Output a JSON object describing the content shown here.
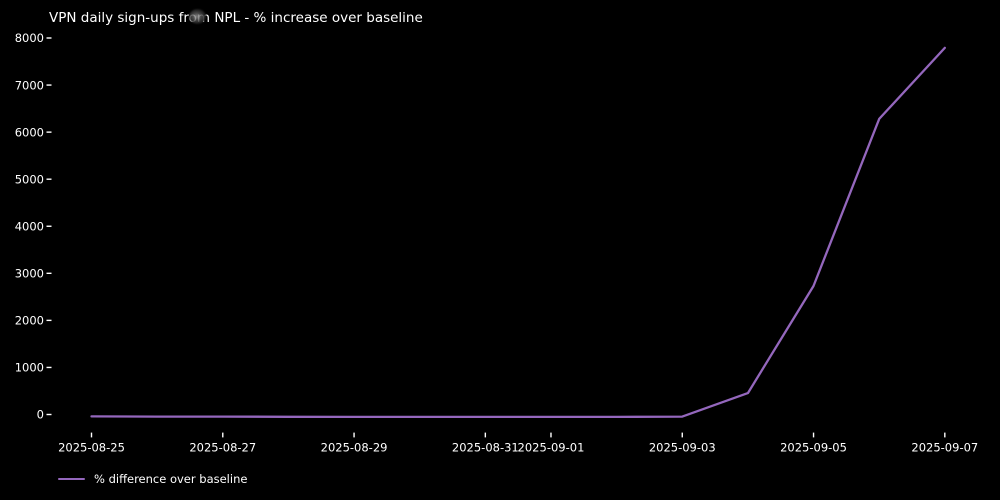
{
  "window": {
    "background_color": "#000000",
    "text_color": "#ffffff"
  },
  "title": "VPN daily sign-ups from NPL - % increase over baseline",
  "icons": {
    "cursor_artifact": "blurred mouse-cursor smudge over the letter o of 'from' in the title"
  },
  "legend": {
    "items": [
      {
        "label": "% difference over baseline",
        "color": "#9467bd",
        "marker": "line"
      }
    ],
    "position": "lower-left-below-axes",
    "frame": false
  },
  "chart_data": {
    "type": "line",
    "title": "VPN daily sign-ups from NPL - % increase over baseline",
    "xlabel": "",
    "ylabel": "",
    "x": [
      "2025-08-25",
      "2025-08-26",
      "2025-08-27",
      "2025-08-28",
      "2025-08-29",
      "2025-08-30",
      "2025-08-31",
      "2025-09-01",
      "2025-09-02",
      "2025-09-03",
      "2025-09-04",
      "2025-09-05",
      "2025-09-06",
      "2025-09-07"
    ],
    "series": [
      {
        "name": "% difference over baseline",
        "color": "#9467bd",
        "values": [
          -40,
          -45,
          -45,
          -48,
          -50,
          -50,
          -50,
          -50,
          -50,
          -45,
          455,
          2730,
          6280,
          7790
        ]
      }
    ],
    "x_tick_labels": [
      "2025-08-25",
      "2025-08-27",
      "2025-08-29",
      "2025-08-31",
      "2025-09-01",
      "2025-09-03",
      "2025-09-05",
      "2025-09-07"
    ],
    "y_ticks": [
      0,
      1000,
      2000,
      3000,
      4000,
      5000,
      6000,
      7000,
      8000
    ],
    "ylim": [
      -400,
      8200
    ],
    "grid": false,
    "background": "#000000",
    "tick_color": "#ffffff",
    "legend_position": "lower-left-below-axes"
  }
}
